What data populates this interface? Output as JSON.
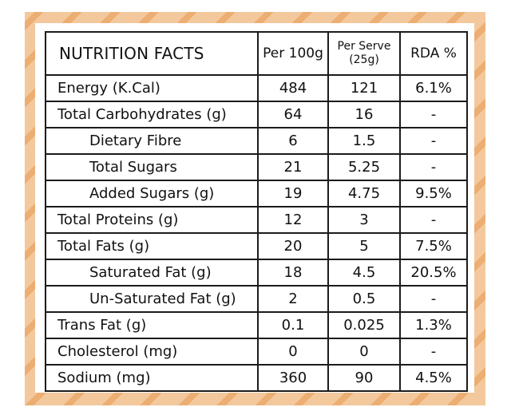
{
  "title": "NUTRITION FACTS",
  "headers": {
    "per100": "Per 100g",
    "perServe": "Per Serve",
    "perServeSub": "(25g)",
    "rda": "RDA %"
  },
  "rows": [
    {
      "name": "Energy (K.Cal)",
      "indent": false,
      "per100": "484",
      "perServe": "121",
      "rda": "6.1%"
    },
    {
      "name": "Total Carbohydrates (g)",
      "indent": false,
      "per100": "64",
      "perServe": "16",
      "rda": "-"
    },
    {
      "name": "Dietary Fibre",
      "indent": true,
      "per100": "6",
      "perServe": "1.5",
      "rda": "-"
    },
    {
      "name": "Total Sugars",
      "indent": true,
      "per100": "21",
      "perServe": "5.25",
      "rda": "-"
    },
    {
      "name": "Added Sugars (g)",
      "indent": true,
      "per100": "19",
      "perServe": "4.75",
      "rda": "9.5%"
    },
    {
      "name": "Total Proteins (g)",
      "indent": false,
      "per100": "12",
      "perServe": "3",
      "rda": "-"
    },
    {
      "name": "Total Fats (g)",
      "indent": false,
      "per100": "20",
      "perServe": "5",
      "rda": "7.5%"
    },
    {
      "name": "Saturated Fat (g)",
      "indent": true,
      "per100": "18",
      "perServe": "4.5",
      "rda": "20.5%"
    },
    {
      "name": "Un-Saturated Fat (g)",
      "indent": true,
      "per100": "2",
      "perServe": "0.5",
      "rda": "-"
    },
    {
      "name": "Trans Fat (g)",
      "indent": false,
      "per100": "0.1",
      "perServe": "0.025",
      "rda": "1.3%"
    },
    {
      "name": "Cholesterol (mg)",
      "indent": false,
      "per100": "0",
      "perServe": "0",
      "rda": "-"
    },
    {
      "name": "Sodium (mg)",
      "indent": false,
      "per100": "360",
      "perServe": "90",
      "rda": "4.5%"
    }
  ],
  "colors": {
    "border_light": "#f3c89c",
    "border_stripe": "#ecae72",
    "grid_line": "#1b1b1b"
  }
}
